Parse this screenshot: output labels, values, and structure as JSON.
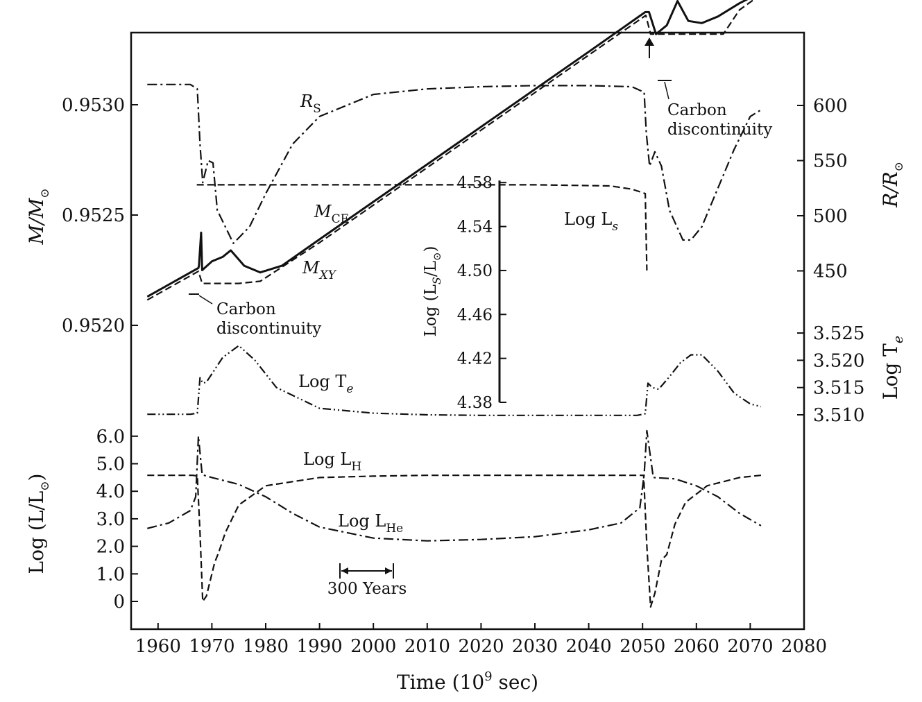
{
  "chart_data": {
    "type": "line",
    "xlabel": "Time (10",
    "xlabel_exp": "9",
    "xlabel_tail": " sec)",
    "xlim": [
      1955,
      2080
    ],
    "xticks": [
      "1960",
      "1970",
      "1980",
      "1990",
      "2000",
      "2010",
      "2020",
      "2030",
      "2040",
      "2050",
      "2060",
      "2070",
      "2080"
    ],
    "left_axes": [
      {
        "label": "M/M",
        "label_symbol": "⊙",
        "ticks": [
          "0.9530",
          "0.9525",
          "0.9520"
        ],
        "range": [
          0.95178,
          0.95355
        ]
      },
      {
        "label": "Log (L/L",
        "label_symbol": "⊙",
        "label_tail": ")",
        "ticks": [
          "6.0",
          "5.0",
          "4.0",
          "3.0",
          "2.0",
          "1.0",
          "0"
        ],
        "range": [
          -1.0,
          6.3
        ]
      }
    ],
    "right_axes": [
      {
        "label": "R/R",
        "label_symbol": "⊙",
        "ticks": [
          "600",
          "550",
          "500",
          "450"
        ],
        "range": [
          380,
          650
        ]
      },
      {
        "label": "Log T",
        "label_sub": "e",
        "ticks": [
          "3.525",
          "3.520",
          "3.515",
          "3.510"
        ],
        "range": [
          3.5088,
          3.527
        ]
      }
    ],
    "inset": {
      "ylabel": "Log (L",
      "ylabel_sub": "S",
      "ylabel_mid": "/L",
      "ylabel_symbol": "⊙",
      "ylabel_tail": ")",
      "yticks": [
        "4.58",
        "4.54",
        "4.50",
        "4.46",
        "4.42",
        "4.38"
      ],
      "range": [
        4.38,
        4.58
      ],
      "series_label": "Log L",
      "series_label_sub": "s",
      "series": {
        "x": [
          1967.2,
          1970,
          1990,
          2010,
          2030,
          2044,
          2048,
          2050.5,
          2050.8
        ],
        "y": [
          4.578,
          4.578,
          4.578,
          4.578,
          4.578,
          4.577,
          4.574,
          4.57,
          4.5
        ]
      }
    },
    "series": [
      {
        "name": "M",
        "name_sub": "CE",
        "axis": "M/M⊙",
        "x": [
          1958,
          1967.5,
          1967.6,
          1968.0,
          1968.2,
          1970,
          1972,
          1973.5,
          1976,
          1979,
          1983,
          1990,
          2000,
          2010,
          2020,
          2030,
          2040,
          2050.5,
          2051.2,
          2052.5,
          2054.5,
          2056.5,
          2058.5,
          2061,
          2064,
          2068,
          2072
        ],
        "y": [
          0.95213,
          0.95226,
          0.95227,
          0.95242,
          0.95225,
          0.95229,
          0.95231,
          0.95234,
          0.95227,
          0.95224,
          0.95227,
          0.95239,
          0.95256,
          0.95273,
          0.9529,
          0.95307,
          0.95324,
          0.95342,
          0.95342,
          0.95332,
          0.95336,
          0.95347,
          0.95338,
          0.95337,
          0.9534,
          0.95346,
          0.95351
        ]
      },
      {
        "name": "M",
        "name_sub": "XY",
        "axis": "M/M⊙",
        "x": [
          1958,
          1967.5,
          1968.2,
          1970,
          1975,
          1979,
          1990,
          2000,
          2010,
          2020,
          2030,
          2040,
          2050.6,
          2051.5,
          2055,
          2060,
          2065,
          2068,
          2072
        ],
        "y": [
          0.952115,
          0.952245,
          0.95219,
          0.95219,
          0.95219,
          0.9522,
          0.952375,
          0.952545,
          0.952715,
          0.952885,
          0.953055,
          0.953225,
          0.953405,
          0.95332,
          0.95332,
          0.95332,
          0.95332,
          0.95343,
          0.9535
        ]
      },
      {
        "name": "R",
        "name_sub": "S",
        "axis": "R/R⊙",
        "x": [
          1958,
          1966,
          1967.3,
          1967.8,
          1968.3,
          1969.3,
          1970.2,
          1971,
          1974,
          1977,
          1980,
          1985,
          1990,
          2000,
          2010,
          2020,
          2030,
          2040,
          2048,
          2050.3,
          2050.7,
          2051.3,
          2052.3,
          2053.5,
          2055,
          2057.5,
          2059,
          2061,
          2064,
          2067,
          2070,
          2072
        ],
        "y": [
          619,
          619,
          615,
          565,
          530,
          550,
          548,
          505,
          475,
          490,
          520,
          565,
          590,
          610,
          615,
          617,
          618,
          618,
          617,
          612,
          575,
          545,
          558,
          545,
          505,
          478,
          478,
          490,
          525,
          560,
          590,
          596
        ]
      },
      {
        "name": "Log T",
        "name_sub": "e",
        "axis": "Log Te",
        "x": [
          1958,
          1966,
          1967.3,
          1967.8,
          1968.3,
          1969.0,
          1970,
          1972,
          1975,
          1978,
          1982,
          1990,
          2000,
          2010,
          2020,
          2030,
          2040,
          2049,
          2050.5,
          2051.0,
          2051.8,
          2053,
          2055,
          2057,
          2059,
          2061,
          2064,
          2067,
          2070,
          2072
        ],
        "y": [
          3.5101,
          3.5101,
          3.5103,
          3.5168,
          3.5158,
          3.516,
          3.5175,
          3.5205,
          3.5227,
          3.52,
          3.515,
          3.5112,
          3.5103,
          3.51,
          3.5099,
          3.5099,
          3.5099,
          3.5099,
          3.5102,
          3.5158,
          3.515,
          3.5147,
          3.517,
          3.5195,
          3.521,
          3.521,
          3.518,
          3.514,
          3.512,
          3.5115
        ]
      },
      {
        "name": "Log L",
        "name_sub": "H",
        "axis": "Log (L/L⊙)",
        "x": [
          1958,
          1966.5,
          1967.3,
          1967.8,
          1968.3,
          1969,
          1970.5,
          1971.3,
          1972.5,
          1975,
          1980,
          1990,
          2000,
          2010,
          2020,
          2030,
          2040,
          2050.2,
          2050.8,
          2051.5,
          2052.3,
          2053.5,
          2054.5,
          2056,
          2058,
          2062,
          2068,
          2072
        ],
        "y": [
          4.58,
          4.58,
          4.55,
          2.5,
          0.0,
          0.2,
          1.4,
          1.8,
          2.5,
          3.5,
          4.2,
          4.5,
          4.55,
          4.58,
          4.58,
          4.58,
          4.58,
          4.58,
          2.0,
          -0.2,
          0.3,
          1.5,
          1.7,
          2.8,
          3.6,
          4.2,
          4.5,
          4.58
        ]
      },
      {
        "name": "Log L",
        "name_sub": "He",
        "axis": "Log (L/L⊙)",
        "x": [
          1958,
          1962,
          1966,
          1967.0,
          1967.5,
          1968.2,
          1970,
          1975,
          1980,
          1985,
          1990,
          2000,
          2010,
          2020,
          2030,
          2040,
          2046,
          2049.5,
          2050.3,
          2050.8,
          2052,
          2056,
          2060,
          2064,
          2068,
          2072
        ],
        "y": [
          2.65,
          2.85,
          3.3,
          3.8,
          6.0,
          4.6,
          4.5,
          4.25,
          3.8,
          3.2,
          2.7,
          2.3,
          2.2,
          2.25,
          2.35,
          2.6,
          2.85,
          3.4,
          4.6,
          6.2,
          4.5,
          4.45,
          4.2,
          3.8,
          3.2,
          2.75
        ]
      }
    ],
    "annotations": [
      {
        "text_lines": [
          "Carbon",
          "discontinuity"
        ],
        "x": 1967.5,
        "y": 0.95214,
        "axis": "M/M⊙"
      },
      {
        "text_lines": [
          "Carbon",
          "discontinuity"
        ],
        "x": 2053,
        "y": 0.95331,
        "axis": "M/M⊙"
      },
      {
        "text": "300 Years",
        "x_start": 1995,
        "x_end": 2004.5
      }
    ],
    "grid": false,
    "legend": "none"
  }
}
